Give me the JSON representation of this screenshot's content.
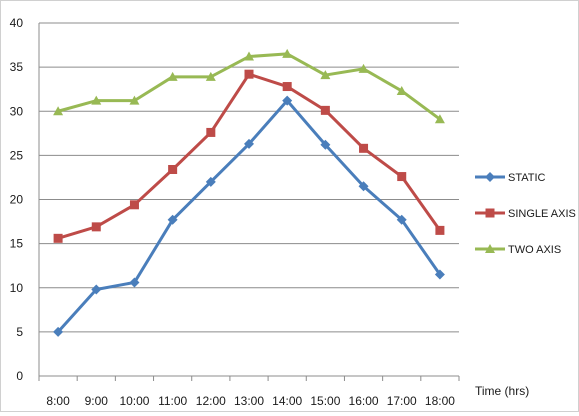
{
  "chart_data": {
    "type": "line",
    "title": "",
    "xlabel": "Time (hrs)",
    "ylabel": "",
    "ylim": [
      0,
      40
    ],
    "yticks": [
      0,
      5,
      10,
      15,
      20,
      25,
      30,
      35,
      40
    ],
    "grid": true,
    "legend_position": "right",
    "categories": [
      "8:00",
      "9:00",
      "10:00",
      "11:00",
      "12:00",
      "13:00",
      "14:00",
      "15:00",
      "16:00",
      "17:00",
      "18:00"
    ],
    "series": [
      {
        "name": "STATIC",
        "color": "#4a7ebb",
        "marker": "diamond",
        "values": [
          5,
          9.8,
          10.6,
          17.7,
          22,
          26.3,
          31.2,
          26.2,
          21.5,
          17.7,
          11.5
        ]
      },
      {
        "name": "SINGLE AXIS",
        "color": "#be4b48",
        "marker": "square",
        "values": [
          15.6,
          16.9,
          19.4,
          23.4,
          27.6,
          34.2,
          32.8,
          30.1,
          25.8,
          22.6,
          16.5
        ]
      },
      {
        "name": "TWO AXIS",
        "color": "#98b954",
        "marker": "triangle",
        "values": [
          30,
          31.2,
          31.2,
          33.9,
          33.9,
          36.2,
          36.5,
          34.1,
          34.8,
          32.3,
          29.1
        ]
      }
    ]
  }
}
